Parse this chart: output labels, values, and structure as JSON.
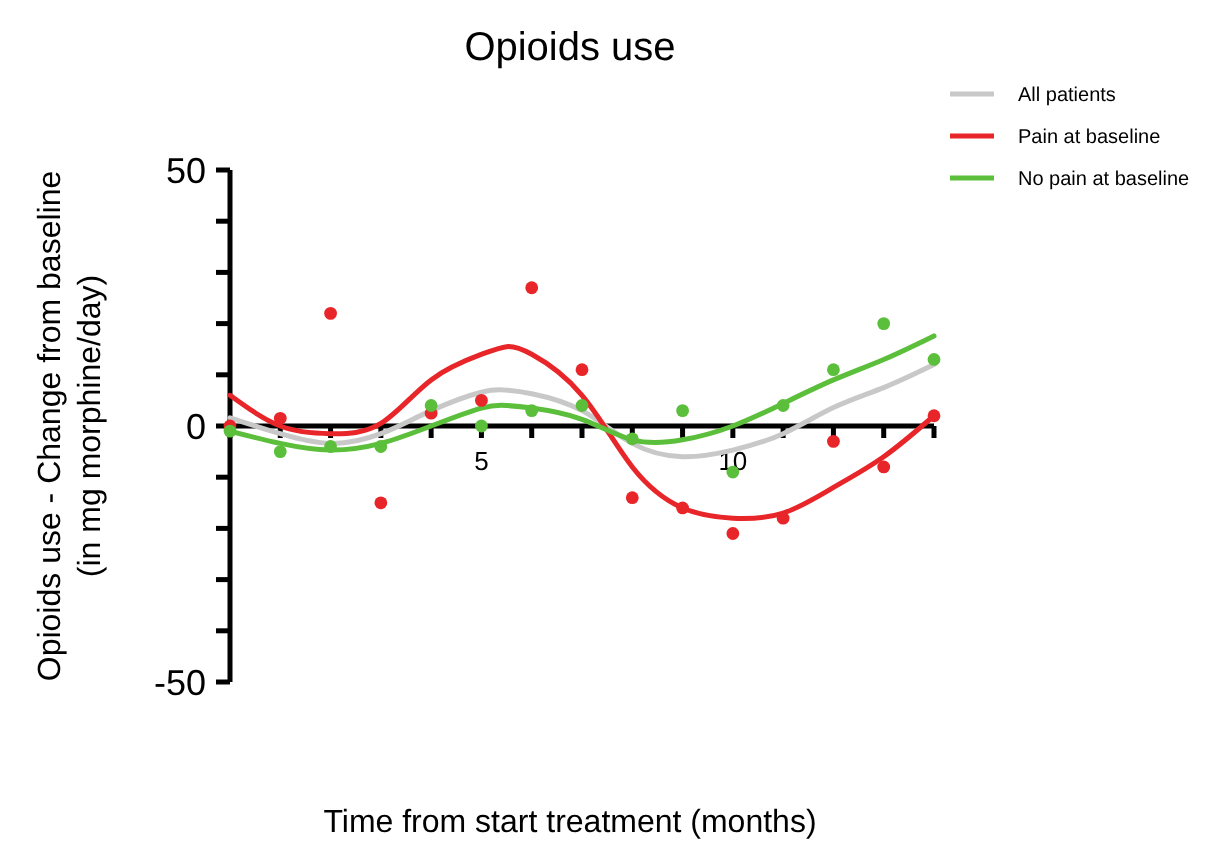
{
  "chart_data": {
    "type": "line",
    "title": "Opioids use",
    "xlabel": "Time from start treatment (months)",
    "ylabel": "Opioids use - Change from baseline\n(in mg morphine/day)",
    "xlim": [
      0,
      14
    ],
    "ylim": [
      -50,
      50
    ],
    "xticks": [
      {
        "value": 0,
        "label": null
      },
      {
        "value": 1,
        "label": null
      },
      {
        "value": 2,
        "label": null
      },
      {
        "value": 3,
        "label": null
      },
      {
        "value": 4,
        "label": null
      },
      5,
      {
        "value": 6,
        "label": null
      },
      {
        "value": 7,
        "label": null
      },
      {
        "value": 8,
        "label": null
      },
      {
        "value": 9,
        "label": null
      },
      10,
      {
        "value": 11,
        "label": null
      },
      {
        "value": 12,
        "label": null
      },
      {
        "value": 13,
        "label": null
      },
      {
        "value": 14,
        "label": null
      }
    ],
    "yticks": [
      -50,
      {
        "value": -40,
        "label": null
      },
      {
        "value": -30,
        "label": null
      },
      {
        "value": -20,
        "label": null
      },
      {
        "value": -10,
        "label": null
      },
      0,
      {
        "value": 10,
        "label": null
      },
      {
        "value": 20,
        "label": null
      },
      {
        "value": 30,
        "label": null
      },
      {
        "value": 40,
        "label": null
      },
      50
    ],
    "legend": "top right",
    "grid": false,
    "series": [
      {
        "name": "All patients",
        "type": "line",
        "color": "#c8c8c8",
        "marker": "none",
        "x": [
          0,
          1,
          2,
          3,
          4,
          5,
          5.5,
          6,
          7,
          8,
          9,
          10,
          11,
          12,
          13,
          14
        ],
        "values": [
          1.6,
          -1.5,
          -3.4,
          -1.5,
          3,
          6.6,
          7,
          6.3,
          3,
          -3.4,
          -6,
          -4.7,
          -1.5,
          3.6,
          7.5,
          12
        ]
      },
      {
        "name": "Pain at baseline",
        "type": "line",
        "color": "#e8262a",
        "marker": "none",
        "x": [
          0,
          1,
          2,
          3,
          4,
          5,
          5.5,
          6,
          7,
          8,
          9,
          10,
          11,
          12,
          13,
          14
        ],
        "values": [
          6,
          0,
          -1.5,
          0.5,
          9,
          14,
          15.5,
          14,
          6,
          -8,
          -16,
          -18,
          -17,
          -12,
          -6,
          2
        ]
      },
      {
        "name": "No pain at baseline",
        "type": "line",
        "color": "#5bbf3b",
        "marker": "none",
        "x": [
          0,
          1,
          2,
          3,
          4,
          5,
          5.5,
          6,
          7,
          8,
          9,
          10,
          11,
          12,
          13,
          14
        ],
        "values": [
          -1,
          -3.4,
          -4.7,
          -3.4,
          0,
          3.5,
          4,
          3.5,
          1.3,
          -2.7,
          -2.7,
          0,
          4.4,
          9,
          13,
          17.6
        ]
      },
      {
        "type": "scatter",
        "color": "#e8262a",
        "marker": "circle",
        "x": [
          0,
          1,
          2,
          3,
          4,
          5,
          6,
          7,
          8,
          9,
          10,
          11,
          12,
          13,
          14
        ],
        "values": [
          0,
          1.5,
          22,
          -15,
          2.5,
          5,
          27,
          11,
          -14,
          -16,
          -21,
          -18,
          -3,
          -8,
          2
        ]
      },
      {
        "type": "scatter",
        "color": "#5bbf3b",
        "marker": "circle",
        "x": [
          0,
          1,
          2,
          3,
          4,
          5,
          6,
          7,
          8,
          9,
          10,
          11,
          12,
          13,
          14
        ],
        "values": [
          -1,
          -5,
          -4,
          -4,
          4,
          0,
          3,
          4,
          -2.5,
          3,
          -9,
          4,
          11,
          20,
          13
        ]
      }
    ]
  }
}
